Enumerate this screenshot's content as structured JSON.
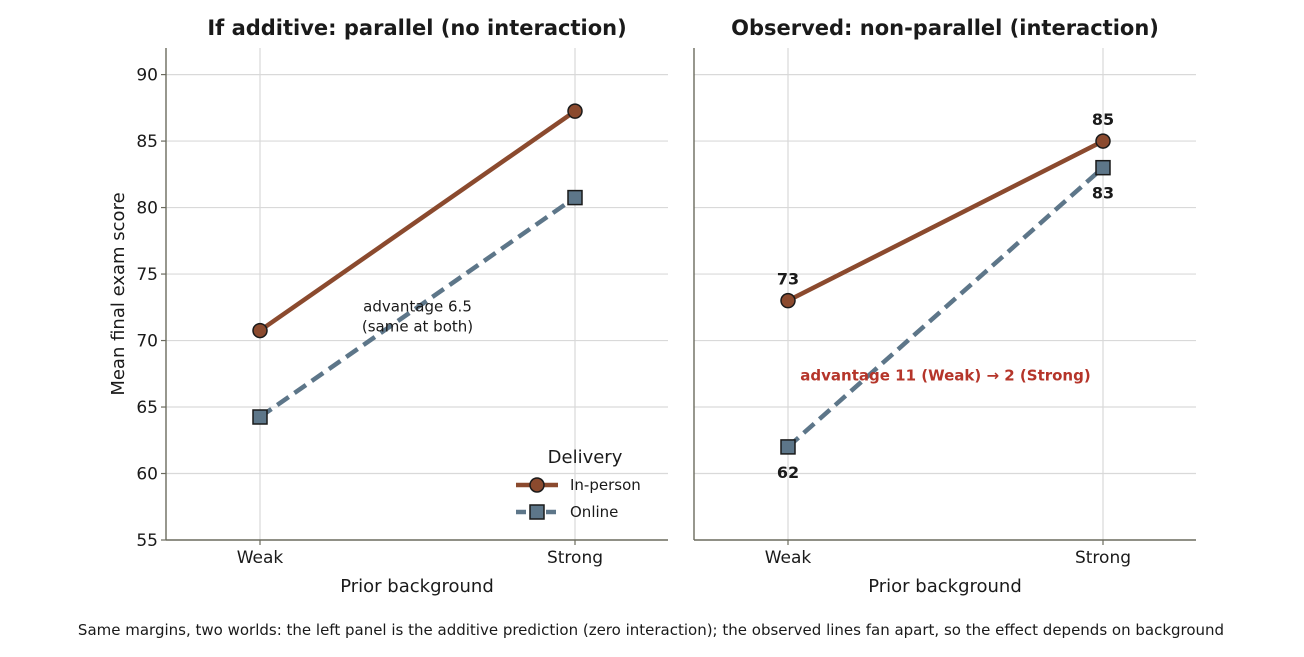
{
  "caption": "Same margins, two worlds: the left panel is the additive prediction (zero interaction); the observed lines fan apart, so the effect depends on background",
  "colors": {
    "in_person": "#8b4a2e",
    "online": "#5d7689",
    "highlight": "#b5352a",
    "marker_edge": "#1a1a1a"
  },
  "chart_data": [
    {
      "type": "line",
      "title": "If additive: parallel (no interaction)",
      "xlabel": "Prior background",
      "ylabel": "Mean final exam score",
      "categories": [
        "Weak",
        "Strong"
      ],
      "ylim": [
        55,
        92
      ],
      "yticks": [
        55,
        60,
        65,
        70,
        75,
        80,
        85,
        90
      ],
      "grid": true,
      "series": [
        {
          "name": "In-person",
          "values": [
            70.75,
            87.25
          ],
          "line_style": "solid",
          "marker": "circle"
        },
        {
          "name": "Online",
          "values": [
            64.25,
            80.75
          ],
          "line_style": "dashed",
          "marker": "square"
        }
      ],
      "annotation": {
        "text": [
          "advantage 6.5",
          "(same at both)"
        ],
        "x": 0.5,
        "y": 72.2
      },
      "legend": {
        "title": "Delivery",
        "location": "lower-right",
        "entries": [
          "In-person",
          "Online"
        ]
      }
    },
    {
      "type": "line",
      "title": "Observed: non-parallel (interaction)",
      "xlabel": "Prior background",
      "ylabel": "",
      "categories": [
        "Weak",
        "Strong"
      ],
      "ylim": [
        55,
        92
      ],
      "yticks": [
        55,
        60,
        65,
        70,
        75,
        80,
        85,
        90
      ],
      "grid": true,
      "series": [
        {
          "name": "In-person",
          "values": [
            73,
            85
          ],
          "line_style": "solid",
          "marker": "circle",
          "labels": [
            "73",
            "85"
          ]
        },
        {
          "name": "Online",
          "values": [
            62,
            83
          ],
          "line_style": "dashed",
          "marker": "square",
          "labels": [
            "62",
            "83"
          ]
        }
      ],
      "annotation": {
        "text": [
          "advantage 11 (Weak)  →  2 (Strong)"
        ],
        "x": 0.5,
        "y": 67.0,
        "highlight": true
      }
    }
  ]
}
